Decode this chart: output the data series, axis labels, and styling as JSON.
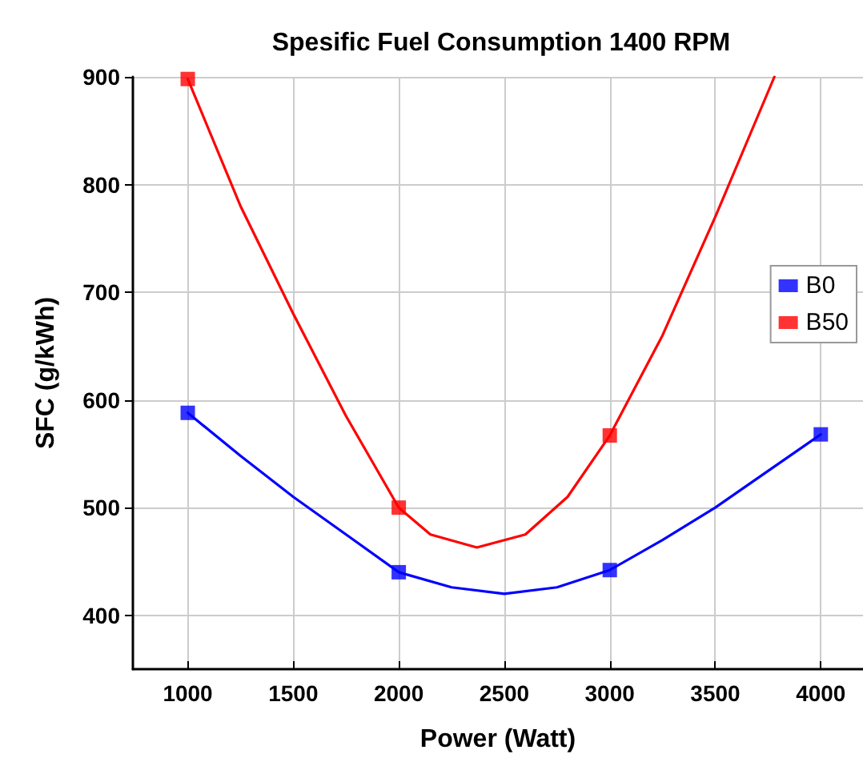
{
  "chart_data": {
    "type": "line",
    "title": "Spesific Fuel Consumption 1400 RPM",
    "xlabel": "Power (Watt)",
    "ylabel": "SFC (g/kWh)",
    "xlim": [
      740,
      4200
    ],
    "xticks": [
      1000,
      1500,
      2000,
      2500,
      3000,
      3500,
      4000
    ],
    "ylim": [
      350,
      900
    ],
    "yticks": [
      400,
      500,
      600,
      700,
      800,
      900
    ],
    "grid": true,
    "legend": "right",
    "series": [
      {
        "type": "line",
        "marker": "none",
        "color": "#0000ff",
        "x": [
          1000,
          1250,
          1500,
          1750,
          2000,
          2250,
          2500,
          2750,
          3000,
          3250,
          3500,
          3750,
          4000
        ],
        "values": [
          588,
          548,
          510,
          475,
          440,
          426,
          420,
          426,
          442,
          470,
          500,
          534,
          568
        ]
      },
      {
        "type": "line",
        "marker": "none",
        "color": "#ff0000",
        "x": [
          1000,
          1250,
          1500,
          1750,
          2000,
          2150,
          2370,
          2600,
          2800,
          3000,
          3250,
          3500,
          3780
        ],
        "values": [
          898,
          780,
          680,
          585,
          500,
          475,
          463,
          475,
          510,
          567,
          660,
          770,
          900
        ]
      },
      {
        "name": "B0",
        "type": "scatter",
        "marker": "square",
        "color": "#0000ff",
        "x": [
          1000,
          2000,
          3000,
          4000
        ],
        "values": [
          588,
          440,
          442,
          568
        ]
      },
      {
        "name": "B50",
        "type": "scatter",
        "marker": "square",
        "color": "#ff0000",
        "x": [
          1000,
          2000,
          3000
        ],
        "values": [
          898,
          500,
          567
        ]
      }
    ]
  }
}
